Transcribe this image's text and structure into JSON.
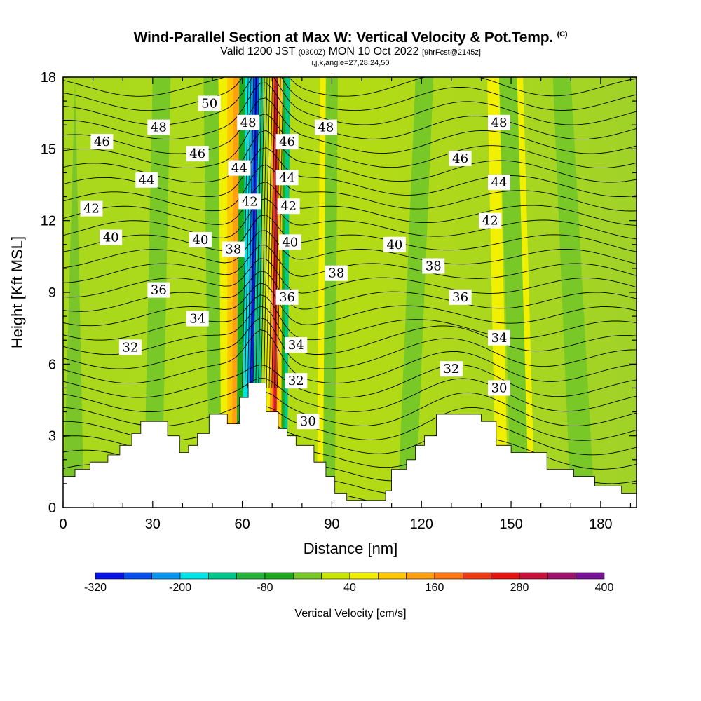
{
  "header": {
    "title": "Wind-Parallel Section at Max W: Vertical Velocity & Pot.Temp.",
    "copyright": "(C)",
    "valid_prefix": "Valid 1200 JST",
    "valid_utc": "(0300Z)",
    "valid_date": "MON 10 Oct 2022",
    "forecast": "[9hrFcst@2145z]",
    "indices": "i,j,k,angle=27,28,24,50"
  },
  "chart_data": {
    "type": "heatmap",
    "title": "Wind-Parallel Section at Max W: Vertical Velocity & Pot.Temp.",
    "xlabel": "Distance [nm]",
    "ylabel": "Height [Kft MSL]",
    "xlim": [
      0,
      192
    ],
    "ylim": [
      0,
      18
    ],
    "x_ticks": [
      0,
      30,
      60,
      90,
      120,
      150,
      180
    ],
    "y_ticks": [
      0,
      3,
      6,
      9,
      12,
      15,
      18
    ],
    "colorbar": {
      "title": "Vertical Velocity [cm/s]",
      "tick_labels": [
        "-320",
        "-200",
        "-80",
        "40",
        "160",
        "280",
        "400"
      ],
      "bounds": [
        -320,
        -280,
        -240,
        -200,
        -160,
        -120,
        -80,
        -40,
        0,
        40,
        80,
        120,
        160,
        200,
        240,
        280,
        320,
        360,
        400
      ],
      "colors": [
        "#0a14e6",
        "#0a50f0",
        "#0a96f0",
        "#00e6e6",
        "#00c88c",
        "#28b43c",
        "#1eaa1e",
        "#78c828",
        "#c8e600",
        "#f0f000",
        "#ffc800",
        "#ffa014",
        "#ff7814",
        "#f03c14",
        "#e61414",
        "#c8143c",
        "#a0146e",
        "#781496"
      ]
    },
    "terrain_profile": [
      [
        0,
        1.3
      ],
      [
        4,
        1.3
      ],
      [
        4,
        1.6
      ],
      [
        9,
        1.6
      ],
      [
        9,
        1.9
      ],
      [
        15,
        1.9
      ],
      [
        15,
        2.2
      ],
      [
        19,
        2.2
      ],
      [
        19,
        2.6
      ],
      [
        23,
        2.6
      ],
      [
        23,
        3.1
      ],
      [
        26,
        3.1
      ],
      [
        26,
        3.6
      ],
      [
        35,
        3.6
      ],
      [
        35,
        3.0
      ],
      [
        39,
        3.0
      ],
      [
        39,
        2.3
      ],
      [
        42,
        2.3
      ],
      [
        42,
        2.6
      ],
      [
        45,
        2.6
      ],
      [
        45,
        3.1
      ],
      [
        49,
        3.1
      ],
      [
        49,
        3.9
      ],
      [
        55,
        3.9
      ],
      [
        55,
        3.5
      ],
      [
        59,
        3.5
      ],
      [
        59,
        4.6
      ],
      [
        62,
        4.6
      ],
      [
        62,
        5.2
      ],
      [
        68,
        5.2
      ],
      [
        68,
        4.0
      ],
      [
        72,
        4.0
      ],
      [
        72,
        3.3
      ],
      [
        75,
        3.3
      ],
      [
        75,
        3.0
      ],
      [
        78,
        3.0
      ],
      [
        78,
        2.6
      ],
      [
        84,
        2.6
      ],
      [
        84,
        1.9
      ],
      [
        88,
        1.9
      ],
      [
        88,
        1.3
      ],
      [
        91,
        1.3
      ],
      [
        91,
        0.6
      ],
      [
        95,
        0.6
      ],
      [
        95,
        0.3
      ],
      [
        108,
        0.3
      ],
      [
        108,
        0.7
      ],
      [
        110,
        0.7
      ],
      [
        110,
        1.6
      ],
      [
        115,
        1.6
      ],
      [
        115,
        2.0
      ],
      [
        118,
        2.0
      ],
      [
        118,
        2.6
      ],
      [
        121,
        2.6
      ],
      [
        121,
        3.0
      ],
      [
        125,
        3.0
      ],
      [
        125,
        3.9
      ],
      [
        140,
        3.9
      ],
      [
        140,
        3.6
      ],
      [
        145,
        3.6
      ],
      [
        145,
        2.6
      ],
      [
        150,
        2.6
      ],
      [
        150,
        2.3
      ],
      [
        162,
        2.3
      ],
      [
        162,
        1.6
      ],
      [
        171,
        1.6
      ],
      [
        171,
        1.3
      ],
      [
        178,
        1.3
      ],
      [
        178,
        0.9
      ],
      [
        187,
        0.9
      ],
      [
        187,
        0.6
      ],
      [
        192,
        0.6
      ]
    ],
    "theta_contour_labels": [
      {
        "text": "50",
        "x": 49,
        "y": 16.9
      },
      {
        "text": "48",
        "x": 32,
        "y": 15.9
      },
      {
        "text": "46",
        "x": 13,
        "y": 15.3
      },
      {
        "text": "46",
        "x": 45,
        "y": 14.8
      },
      {
        "text": "44",
        "x": 28,
        "y": 13.7
      },
      {
        "text": "42",
        "x": 9.5,
        "y": 12.5
      },
      {
        "text": "40",
        "x": 16,
        "y": 11.3
      },
      {
        "text": "40",
        "x": 46,
        "y": 11.2
      },
      {
        "text": "38",
        "x": 57,
        "y": 10.8
      },
      {
        "text": "36",
        "x": 32,
        "y": 9.1
      },
      {
        "text": "34",
        "x": 45,
        "y": 7.9
      },
      {
        "text": "32",
        "x": 22.5,
        "y": 6.7
      },
      {
        "text": "48",
        "x": 62,
        "y": 16.1
      },
      {
        "text": "44",
        "x": 59,
        "y": 14.2
      },
      {
        "text": "42",
        "x": 62.5,
        "y": 12.8
      },
      {
        "text": "46",
        "x": 75,
        "y": 15.3
      },
      {
        "text": "44",
        "x": 75,
        "y": 13.8
      },
      {
        "text": "42",
        "x": 75.5,
        "y": 12.6
      },
      {
        "text": "40",
        "x": 76,
        "y": 11.1
      },
      {
        "text": "48",
        "x": 88,
        "y": 15.9
      },
      {
        "text": "38",
        "x": 91.5,
        "y": 9.8
      },
      {
        "text": "36",
        "x": 75,
        "y": 8.8
      },
      {
        "text": "34",
        "x": 78,
        "y": 6.8
      },
      {
        "text": "32",
        "x": 78,
        "y": 5.3
      },
      {
        "text": "30",
        "x": 82,
        "y": 3.6
      },
      {
        "text": "40",
        "x": 111,
        "y": 11.0
      },
      {
        "text": "38",
        "x": 124,
        "y": 10.1
      },
      {
        "text": "36",
        "x": 133,
        "y": 8.8
      },
      {
        "text": "32",
        "x": 130,
        "y": 5.8
      },
      {
        "text": "46",
        "x": 133,
        "y": 14.6
      },
      {
        "text": "48",
        "x": 146,
        "y": 16.1
      },
      {
        "text": "44",
        "x": 146,
        "y": 13.6
      },
      {
        "text": "42",
        "x": 143,
        "y": 12.0
      },
      {
        "text": "34",
        "x": 146,
        "y": 7.1
      },
      {
        "text": "30",
        "x": 146,
        "y": 5.0
      }
    ]
  }
}
